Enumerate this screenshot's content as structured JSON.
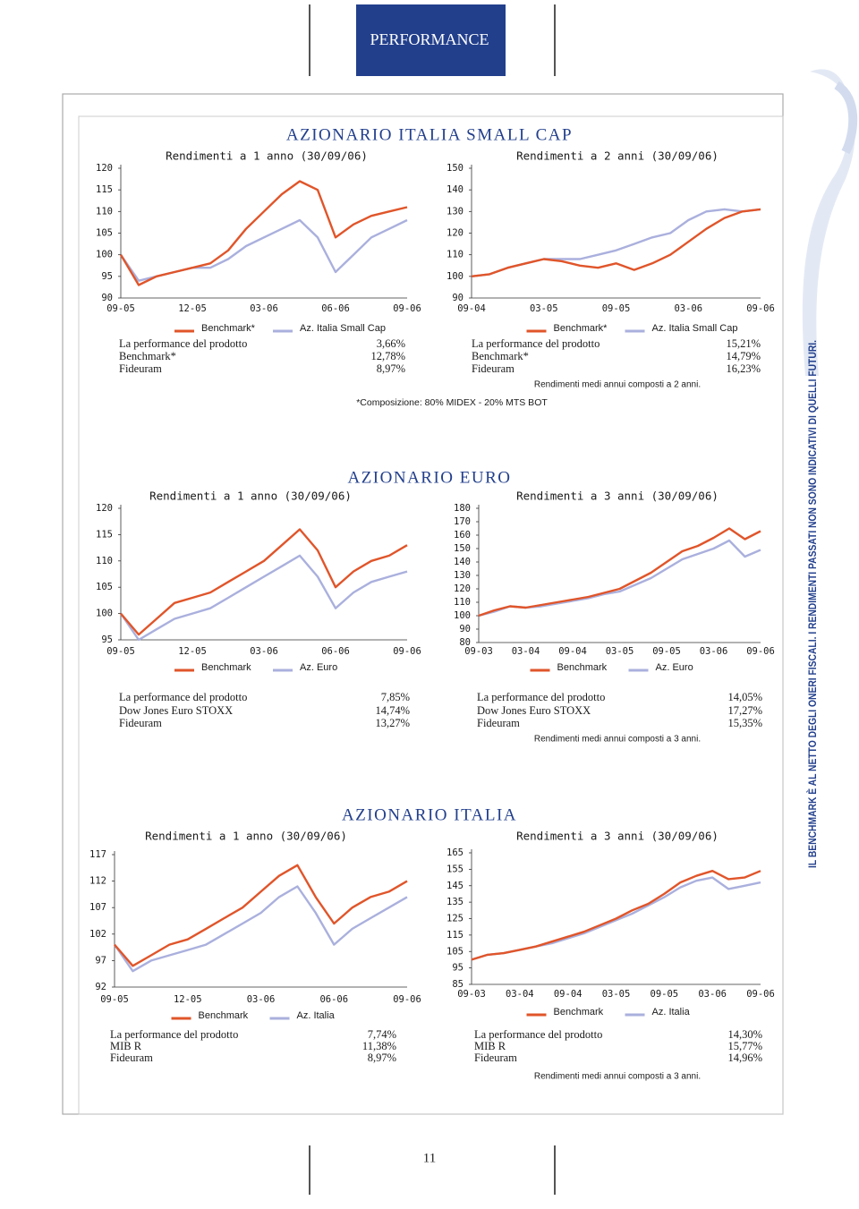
{
  "header": {
    "title": "PERFORMANCE"
  },
  "sections": [
    {
      "title": "AZIONARIO ITALIA SMALL CAP",
      "note": "*Composizione: 80% MIDEX - 20% MTS BOT"
    },
    {
      "title": "AZIONARIO EURO"
    },
    {
      "title": "AZIONARIO ITALIA"
    }
  ],
  "tables": [
    {
      "rows": [
        [
          "La performance del prodotto",
          "3,66%"
        ],
        [
          "Benchmark*",
          "12,78%"
        ],
        [
          "Fideuram",
          "8,97%"
        ]
      ]
    },
    {
      "rows": [
        [
          "La performance del prodotto",
          "15,21%"
        ],
        [
          "Benchmark*",
          "14,79%"
        ],
        [
          "Fideuram",
          "16,23%"
        ]
      ],
      "note": "Rendimenti medi annui composti a 2 anni."
    },
    {
      "rows": [
        [
          "La performance del prodotto",
          "7,85%"
        ],
        [
          "Dow Jones Euro STOXX",
          "14,74%"
        ],
        [
          "Fideuram",
          "13,27%"
        ]
      ]
    },
    {
      "rows": [
        [
          "La performance del prodotto",
          "14,05%"
        ],
        [
          "Dow Jones Euro STOXX",
          "17,27%"
        ],
        [
          "Fideuram",
          "15,35%"
        ]
      ],
      "note": "Rendimenti medi annui composti a 3 anni."
    },
    {
      "rows": [
        [
          "La performance del prodotto",
          "7,74%"
        ],
        [
          "MIB R",
          "11,38%"
        ],
        [
          "Fideuram",
          "8,97%"
        ]
      ]
    },
    {
      "rows": [
        [
          "La performance del prodotto",
          "14,30%"
        ],
        [
          "MIB R",
          "15,77%"
        ],
        [
          "Fideuram",
          "14,96%"
        ]
      ],
      "note": "Rendimenti medi annui composti a 3 anni."
    }
  ],
  "chart_data": [
    {
      "type": "line",
      "title": "Rendimenti a 1 anno (30/09/06)",
      "categories": [
        "09-05",
        null,
        null,
        null,
        "12-05",
        null,
        null,
        null,
        "03-06",
        null,
        null,
        null,
        "06-06",
        null,
        null,
        null,
        "09-06"
      ],
      "series": [
        {
          "name": "Benchmark*",
          "color": "#e0552a",
          "values": [
            100,
            93,
            95,
            96,
            97,
            98,
            101,
            106,
            110,
            114,
            117,
            115,
            104,
            107,
            109,
            110,
            111
          ]
        },
        {
          "name": "Az. Italia Small Cap",
          "color": "#aab0dd",
          "values": [
            100,
            94,
            95,
            96,
            97,
            97,
            99,
            102,
            104,
            106,
            108,
            104,
            96,
            100,
            104,
            106,
            108
          ]
        }
      ],
      "ylim": [
        90,
        120
      ],
      "yticks": [
        90,
        95,
        100,
        105,
        110,
        115,
        120
      ]
    },
    {
      "type": "line",
      "title": "Rendimenti a 2 anni (30/09/06)",
      "categories": [
        "09-04",
        null,
        null,
        null,
        "03-05",
        null,
        null,
        null,
        "09-05",
        null,
        null,
        null,
        "03-06",
        null,
        null,
        null,
        "09-06"
      ],
      "series": [
        {
          "name": "Benchmark*",
          "color": "#e0552a",
          "values": [
            100,
            101,
            104,
            106,
            108,
            107,
            105,
            104,
            106,
            103,
            106,
            110,
            116,
            122,
            127,
            130,
            131
          ]
        },
        {
          "name": "Az. Italia Small Cap",
          "color": "#aab0dd",
          "values": [
            100,
            101,
            104,
            106,
            108,
            108,
            108,
            110,
            112,
            115,
            118,
            120,
            126,
            130,
            131,
            130,
            131
          ]
        }
      ],
      "ylim": [
        90,
        150
      ],
      "yticks": [
        90,
        100,
        110,
        120,
        130,
        140,
        150
      ]
    },
    {
      "type": "line",
      "title": "Rendimenti a 1 anno (30/09/06)",
      "categories": [
        "09-05",
        null,
        null,
        null,
        "12-05",
        null,
        null,
        null,
        "03-06",
        null,
        null,
        null,
        "06-06",
        null,
        null,
        null,
        "09-06"
      ],
      "series": [
        {
          "name": "Benchmark",
          "color": "#e0552a",
          "values": [
            100,
            96,
            99,
            102,
            103,
            104,
            106,
            108,
            110,
            113,
            116,
            112,
            105,
            108,
            110,
            111,
            113
          ]
        },
        {
          "name": "Az. Euro",
          "color": "#aab0dd",
          "values": [
            100,
            95,
            97,
            99,
            100,
            101,
            103,
            105,
            107,
            109,
            111,
            107,
            101,
            104,
            106,
            107,
            108
          ]
        }
      ],
      "ylim": [
        95,
        120
      ],
      "yticks": [
        95,
        100,
        105,
        110,
        115,
        120
      ]
    },
    {
      "type": "line",
      "title": "Rendimenti a 3 anni (30/09/06)",
      "categories": [
        "09-03",
        null,
        null,
        "03-04",
        null,
        null,
        "09-04",
        null,
        null,
        "03-05",
        null,
        null,
        "09-05",
        null,
        null,
        "03-06",
        null,
        null,
        "09-06"
      ],
      "series": [
        {
          "name": "Benchmark",
          "color": "#e0552a",
          "values": [
            100,
            104,
            107,
            106,
            108,
            110,
            112,
            114,
            117,
            120,
            126,
            132,
            140,
            148,
            152,
            158,
            165,
            157,
            163
          ]
        },
        {
          "name": "Az. Euro",
          "color": "#aab0dd",
          "values": [
            100,
            103,
            107,
            106,
            107,
            109,
            111,
            113,
            116,
            118,
            123,
            128,
            135,
            142,
            146,
            150,
            156,
            144,
            149
          ]
        }
      ],
      "ylim": [
        80,
        180
      ],
      "yticks": [
        80,
        90,
        100,
        110,
        120,
        130,
        140,
        150,
        160,
        170,
        180
      ]
    },
    {
      "type": "line",
      "title": "Rendimenti a 1 anno (30/09/06)",
      "categories": [
        "09-05",
        null,
        null,
        null,
        "12-05",
        null,
        null,
        null,
        "03-06",
        null,
        null,
        null,
        "06-06",
        null,
        null,
        null,
        "09-06"
      ],
      "series": [
        {
          "name": "Benchmark",
          "color": "#e0552a",
          "values": [
            100,
            96,
            98,
            100,
            101,
            103,
            105,
            107,
            110,
            113,
            115,
            109,
            104,
            107,
            109,
            110,
            112
          ]
        },
        {
          "name": "Az. Italia",
          "color": "#aab0dd",
          "values": [
            100,
            95,
            97,
            98,
            99,
            100,
            102,
            104,
            106,
            109,
            111,
            106,
            100,
            103,
            105,
            107,
            109
          ]
        }
      ],
      "ylim": [
        92,
        117
      ],
      "yticks": [
        92,
        97,
        102,
        107,
        112,
        117
      ]
    },
    {
      "type": "line",
      "title": "Rendimenti a 3 anni (30/09/06)",
      "categories": [
        "09-03",
        null,
        null,
        "03-04",
        null,
        null,
        "09-04",
        null,
        null,
        "03-05",
        null,
        null,
        "09-05",
        null,
        null,
        "03-06",
        null,
        null,
        "09-06"
      ],
      "series": [
        {
          "name": "Benchmark",
          "color": "#e0552a",
          "values": [
            100,
            103,
            104,
            106,
            108,
            111,
            114,
            117,
            121,
            125,
            130,
            134,
            140,
            147,
            151,
            154,
            149,
            150,
            154
          ]
        },
        {
          "name": "Az. Italia",
          "color": "#aab0dd",
          "values": [
            100,
            103,
            104,
            106,
            108,
            110,
            113,
            116,
            120,
            124,
            128,
            133,
            138,
            144,
            148,
            150,
            143,
            145,
            147
          ]
        }
      ],
      "ylim": [
        85,
        165
      ],
      "yticks": [
        85,
        95,
        105,
        115,
        125,
        135,
        145,
        155,
        165
      ]
    }
  ],
  "side_note": "IL BENCHMARK È AL NETTO DEGLI ONERI FISCALI. I RENDIMENTI PASSATI NON SONO INDICATIVI DI QUELLI FUTURI.",
  "page_number": "11"
}
